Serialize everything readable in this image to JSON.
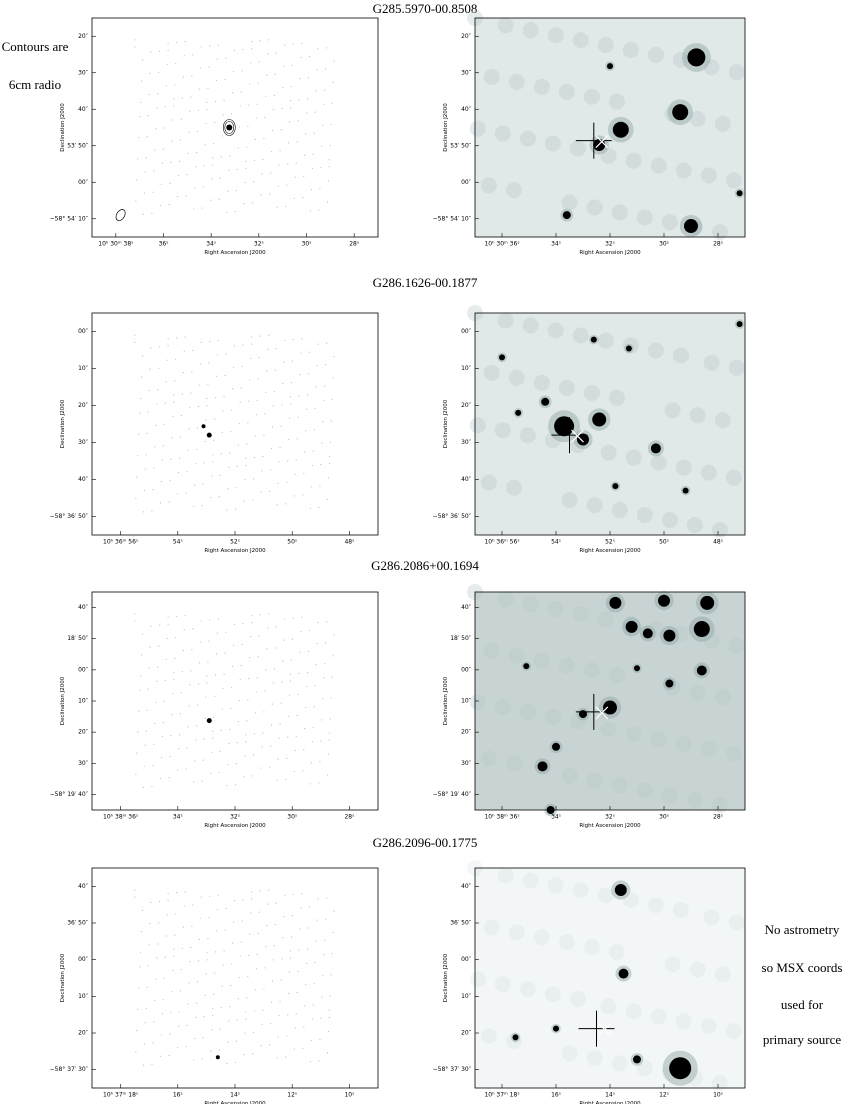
{
  "left_note": [
    "Contours are",
    "6cm radio"
  ],
  "right_note": [
    "No astrometry",
    "so MSX coords",
    "used for",
    "primary source"
  ],
  "rows": [
    {
      "title": "G285.5970-00.8508",
      "panels": [
        {
          "ylabel": "Declination J2000",
          "xlabel": "Right Ascension J2000",
          "yticks": [
            "20″",
            "30″",
            "40″",
            "53′ 50″",
            "00″",
            "−58° 54′ 10″"
          ],
          "xticks": [
            "10ʰ 30ᵐ 38ˢ",
            "36ˢ",
            "34ˢ",
            "32ˢ",
            "30ˢ",
            "28ˢ"
          ]
        },
        {
          "ylabel": "Declination J2000",
          "xlabel": "Right Ascension J2000",
          "yticks": [
            "20″",
            "30″",
            "40″",
            "53′ 50″",
            "00″",
            "−58° 54′ 10″"
          ],
          "xticks": [
            "10ʰ 30ᵐ 36ˢ",
            "34ˢ",
            "32ˢ",
            "30ˢ",
            "28ˢ"
          ]
        }
      ]
    },
    {
      "title": "G286.1626-00.1877",
      "panels": [
        {
          "ylabel": "Declination J2000",
          "xlabel": "Right Ascension J2000",
          "yticks": [
            "00″",
            "10″",
            "20″",
            "30″",
            "40″",
            "−58° 36′ 50″"
          ],
          "xticks": [
            "10ʰ 36ᵐ 56ˢ",
            "54ˢ",
            "52ˢ",
            "50ˢ",
            "48ˢ"
          ]
        },
        {
          "ylabel": "Declination J2000",
          "xlabel": "Right Ascension J2000",
          "yticks": [
            "00″",
            "10″",
            "20″",
            "30″",
            "40″",
            "−58° 36′ 50″"
          ],
          "xticks": [
            "10ʰ 36ᵐ 56ˢ",
            "54ˢ",
            "52ˢ",
            "50ˢ",
            "48ˢ"
          ]
        }
      ]
    },
    {
      "title": "G286.2086+00.1694",
      "panels": [
        {
          "ylabel": "Declination J2000",
          "xlabel": "Right Ascension J2000",
          "yticks": [
            "40″",
            "18′ 50″",
            "00″",
            "10″",
            "20″",
            "30″",
            "−58° 19′ 40″"
          ],
          "xticks": [
            "10ʰ 38ᵐ 36ˢ",
            "34ˢ",
            "32ˢ",
            "30ˢ",
            "28ˢ"
          ]
        },
        {
          "ylabel": "Declination J2000",
          "xlabel": "Right Ascension J2000",
          "yticks": [
            "40″",
            "18′ 50″",
            "00″",
            "10″",
            "20″",
            "30″",
            "−58° 19′ 40″"
          ],
          "xticks": [
            "10ʰ 38ᵐ 36ˢ",
            "34ˢ",
            "32ˢ",
            "30ˢ",
            "28ˢ"
          ]
        }
      ]
    },
    {
      "title": "G286.2096-00.1775",
      "panels": [
        {
          "ylabel": "Declination J2000",
          "xlabel": "Right Ascension J2000",
          "yticks": [
            "40″",
            "36′ 50″",
            "00″",
            "10″",
            "20″",
            "−58° 37′ 30″"
          ],
          "xticks": [
            "10ʰ 37ᵐ 18ˢ",
            "16ˢ",
            "14ˢ",
            "12ˢ",
            "10ˢ"
          ]
        },
        {
          "ylabel": "Declination J2000",
          "xlabel": "Right Ascension J2000",
          "yticks": [
            "40″",
            "36′ 50″",
            "00″",
            "10″",
            "20″",
            "−58° 37′ 30″"
          ],
          "xticks": [
            "10ʰ 37ᵐ 18ˢ",
            "16ˢ",
            "14ˢ",
            "12ˢ",
            "10ˢ"
          ]
        }
      ]
    }
  ]
}
